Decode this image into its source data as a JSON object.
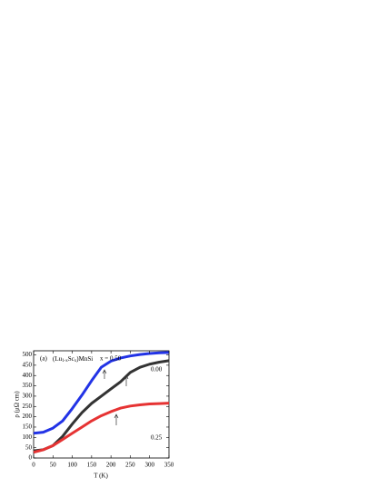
{
  "chart_data": {
    "type": "line",
    "panel_label": "(a)",
    "formula": [
      "(Lu",
      "1-x",
      "Sc",
      "x",
      ")MnSi"
    ],
    "x_label": "T (K)",
    "y_label": "ρ (μΩ cm)",
    "x": [
      0,
      25,
      50,
      75,
      100,
      125,
      150,
      175,
      200,
      225,
      250,
      275,
      300,
      325,
      350
    ],
    "series": [
      {
        "name": "x = 0.50",
        "color": "#2233e6",
        "values": [
          120,
          125,
          145,
          180,
          240,
          305,
          375,
          440,
          470,
          485,
          495,
          502,
          507,
          510,
          512
        ]
      },
      {
        "name": "0.00",
        "color": "#333333",
        "values": [
          35,
          40,
          60,
          105,
          165,
          220,
          265,
          300,
          335,
          370,
          415,
          440,
          455,
          465,
          472
        ]
      },
      {
        "name": "0.25",
        "color": "#e63333",
        "values": [
          28,
          40,
          60,
          90,
          120,
          150,
          180,
          205,
          225,
          242,
          252,
          258,
          262,
          264,
          266
        ]
      }
    ],
    "xlim": [
      0,
      350
    ],
    "xticks": [
      0,
      50,
      100,
      150,
      200,
      250,
      300,
      350
    ],
    "ylim": [
      0,
      520
    ],
    "yticks": [
      0,
      50,
      100,
      150,
      200,
      250,
      300,
      350,
      400,
      450,
      500
    ],
    "grid": false
  }
}
